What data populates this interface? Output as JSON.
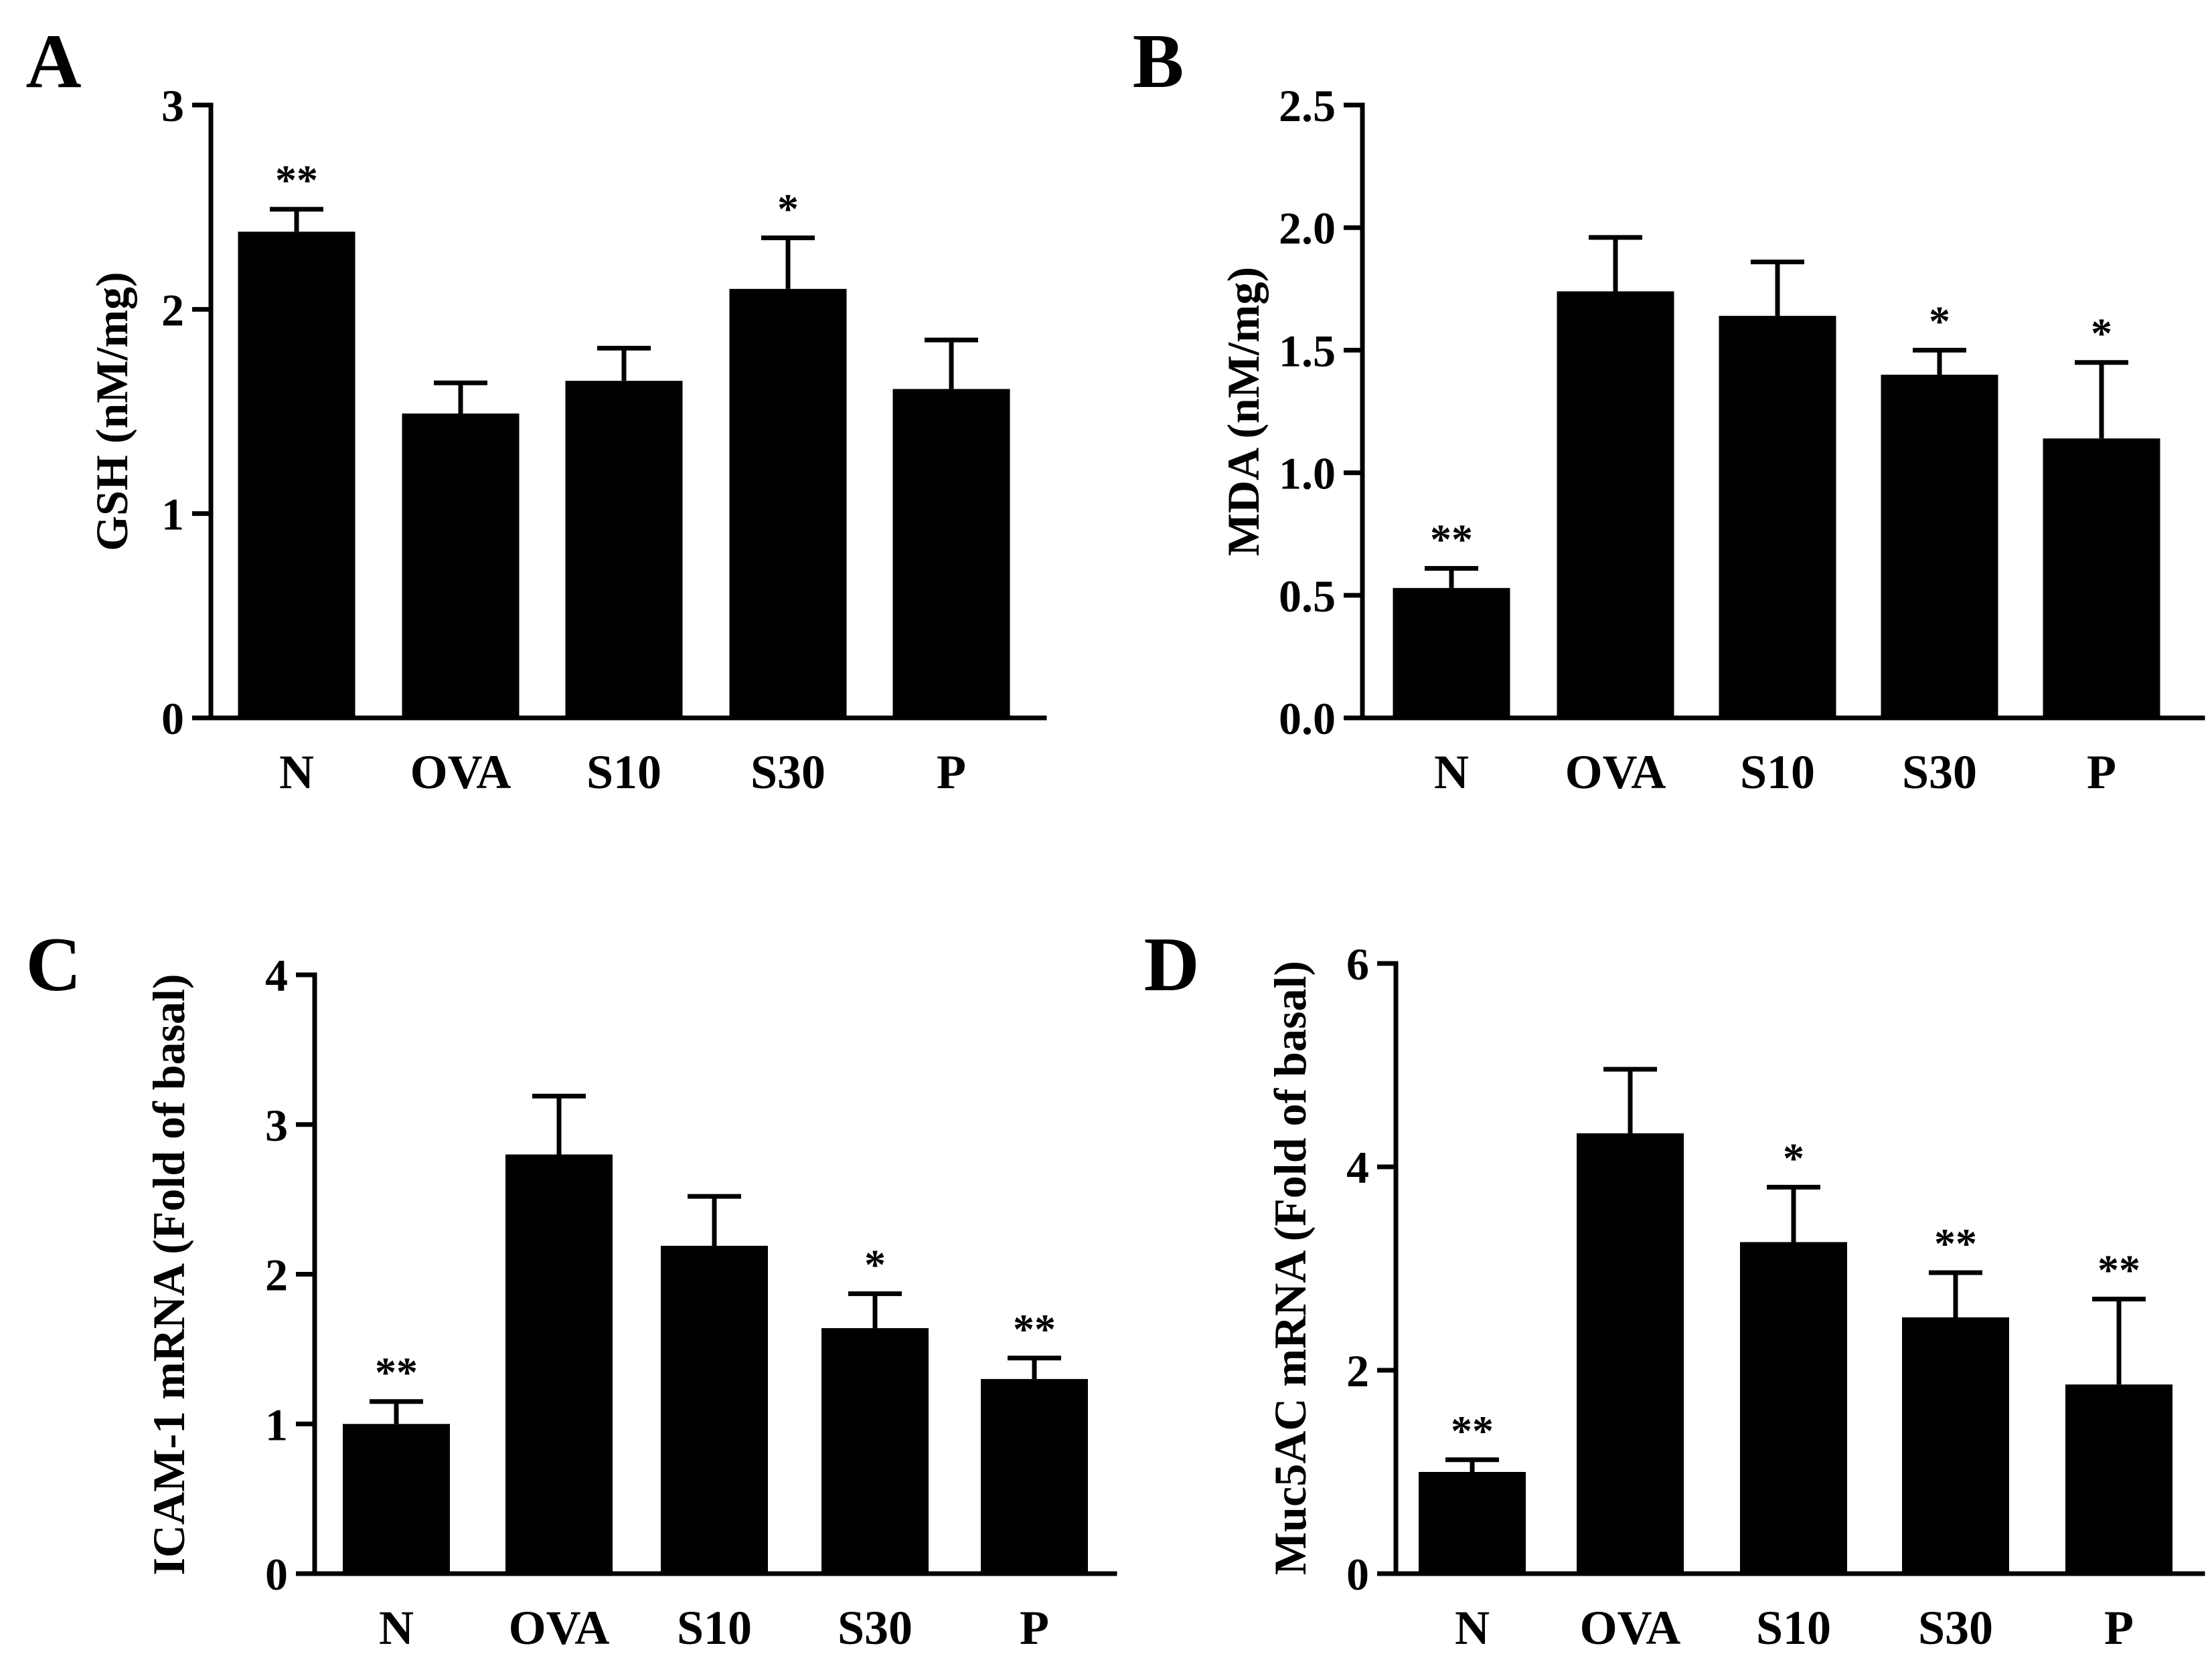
{
  "colors": {
    "bar": "#000000",
    "axis": "#000000",
    "background": "#ffffff"
  },
  "chart_data": [
    {
      "panel_label": "A",
      "type": "bar",
      "categories": [
        "N",
        "OVA",
        "S10",
        "S30",
        "P"
      ],
      "values": [
        2.38,
        1.49,
        1.65,
        2.1,
        1.61
      ],
      "errors": [
        0.11,
        0.15,
        0.16,
        0.25,
        0.24
      ],
      "significance": [
        "**",
        "",
        "",
        "*",
        ""
      ],
      "ylabel": "GSH (nM/mg)",
      "ylim": [
        0,
        3
      ],
      "yticks": [
        0,
        1,
        2,
        3
      ],
      "ytick_labels": [
        "0",
        "1",
        "2",
        "3"
      ]
    },
    {
      "panel_label": "B",
      "type": "bar",
      "categories": [
        "N",
        "OVA",
        "S10",
        "S30",
        "P"
      ],
      "values": [
        0.53,
        1.74,
        1.64,
        1.4,
        1.14
      ],
      "errors": [
        0.08,
        0.22,
        0.22,
        0.1,
        0.31
      ],
      "significance": [
        "**",
        "",
        "",
        "*",
        "*"
      ],
      "ylabel": "MDA (nM/mg)",
      "ylim": [
        0,
        2.5
      ],
      "yticks": [
        0,
        0.5,
        1,
        1.5,
        2,
        2.5
      ],
      "ytick_labels": [
        "0.0",
        "0.5",
        "1.0",
        "1.5",
        "2.0",
        "2.5"
      ]
    },
    {
      "panel_label": "C",
      "type": "bar",
      "categories": [
        "N",
        "OVA",
        "S10",
        "S30",
        "P"
      ],
      "values": [
        1.0,
        2.8,
        2.19,
        1.64,
        1.3
      ],
      "errors": [
        0.15,
        0.39,
        0.33,
        0.23,
        0.14
      ],
      "significance": [
        "**",
        "",
        "",
        "*",
        "**"
      ],
      "ylabel": "ICAM-1 mRNA (Fold of basal)",
      "ylim": [
        0,
        4
      ],
      "yticks": [
        0,
        1,
        2,
        3,
        4
      ],
      "ytick_labels": [
        "0",
        "1",
        "2",
        "3",
        "4"
      ]
    },
    {
      "panel_label": "D",
      "type": "bar",
      "categories": [
        "N",
        "OVA",
        "S10",
        "S30",
        "P"
      ],
      "values": [
        1.0,
        4.33,
        3.26,
        2.52,
        1.86
      ],
      "errors": [
        0.12,
        0.63,
        0.54,
        0.44,
        0.84
      ],
      "significance": [
        "**",
        "",
        "*",
        "**",
        "**"
      ],
      "ylabel": "Muc5AC mRNA (Fold of basal)",
      "ylim": [
        0,
        6
      ],
      "yticks": [
        0,
        2,
        4,
        6
      ],
      "ytick_labels": [
        "0",
        "2",
        "4",
        "6"
      ]
    }
  ]
}
